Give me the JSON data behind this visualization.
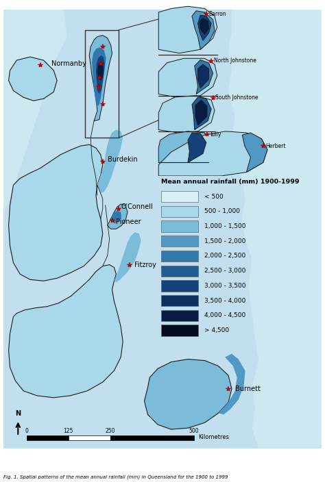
{
  "legend_title": "Mean annual rainfall (mm) 1900-1999",
  "legend_entries": [
    {
      "label": "< 500",
      "color": "#d6f0f5"
    },
    {
      "label": "500 - 1,000",
      "color": "#a8d8ea"
    },
    {
      "label": "1,000 - 1,500",
      "color": "#7bbcd8"
    },
    {
      "label": "1,500 - 2,000",
      "color": "#5099c4"
    },
    {
      "label": "2,000 - 2,500",
      "color": "#3378ad"
    },
    {
      "label": "2,500 - 3,000",
      "color": "#1f5c94"
    },
    {
      "label": "3,000 - 3,500",
      "color": "#154278"
    },
    {
      "label": "3,500 - 4,000",
      "color": "#0d2e5e"
    },
    {
      "label": "4,000 - 4,500",
      "color": "#071c42"
    },
    {
      "label": "> 4,500",
      "color": "#020b20"
    }
  ],
  "sea_color": "#cce8f0",
  "land_base_color": "#c2dff0",
  "river_basin_color": "#a8cce0",
  "coastal_light": "#8bbbd8",
  "coastal_med": "#5090b8",
  "coastal_dark": "#2060a0",
  "very_dark": "#102050",
  "bg_color": "#b8dce8",
  "caption": "Fig. 1. Spatial patterns of the mean annual rainfall (mm) in Queensland for the 1900 to 1999"
}
